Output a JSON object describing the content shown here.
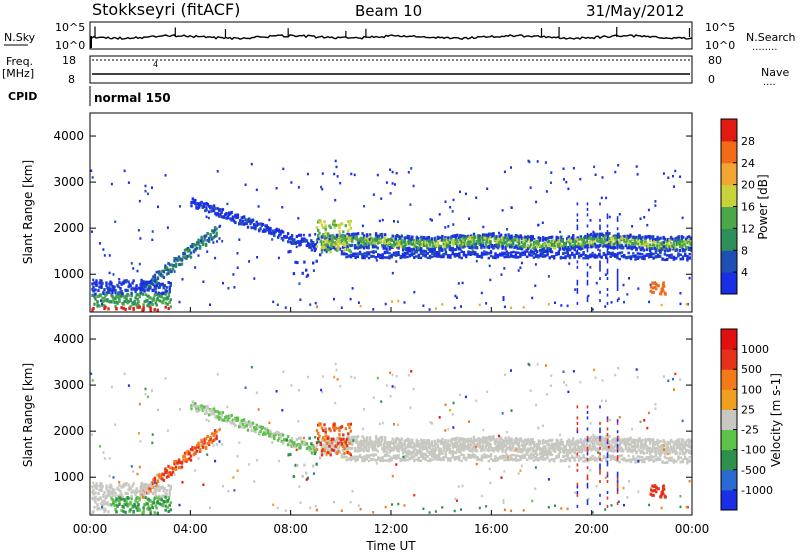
{
  "header": {
    "station": "Stokkseyri (fitACF)",
    "beam": "Beam 10",
    "date": "31/May/2012"
  },
  "nsky_panel": {
    "label": "N.Sky",
    "left_ticks": [
      "10^5",
      "10^0"
    ],
    "right_ticks": [
      "10^5",
      "10^0"
    ],
    "right_label": "N.Search",
    "right_label_line": "........"
  },
  "freq_panel": {
    "label_lines": [
      "Freq.",
      "[MHz]"
    ],
    "left_ticks": [
      "18",
      "8"
    ],
    "right_ticks": [
      "80",
      "0"
    ],
    "right_label": "Nave",
    "right_label_line": "....",
    "marker": "4"
  },
  "cpid": {
    "label": "CPID",
    "text": "normal 150"
  },
  "colors": {
    "power_scale": [
      "#1a2ee6",
      "#1f4fb5",
      "#2e8f5a",
      "#4aa84a",
      "#c8d23a",
      "#f2a531",
      "#f26b18",
      "#e21a12"
    ],
    "velocity_scale": [
      "#1a2ee6",
      "#2a6ad1",
      "#2f8f4c",
      "#5cc24a",
      "#c8c8c2",
      "#f0a020",
      "#f27a18",
      "#e5311a",
      "#e31010"
    ]
  },
  "chart_data": [
    {
      "type": "heatmap",
      "name": "power",
      "ylabel": "Slant Range [km]",
      "yticks": [
        "1000",
        "2000",
        "3000",
        "4000"
      ],
      "ylim": [
        180,
        4500
      ],
      "xlim": [
        "00:00",
        "24:00"
      ],
      "colorbar_label": "Power [dB]",
      "colorbar_ticks": [
        "4",
        "8",
        "12",
        "16",
        "20",
        "24",
        "28"
      ],
      "colorbar_range": [
        0,
        32
      ]
    },
    {
      "type": "heatmap",
      "name": "velocity",
      "ylabel": "Slant Range [km]",
      "yticks": [
        "1000",
        "2000",
        "3000",
        "4000"
      ],
      "ylim": [
        180,
        4500
      ],
      "xlim": [
        "00:00",
        "24:00"
      ],
      "colorbar_label": "Velocity [m s-1]",
      "colorbar_ticks": [
        "1000",
        "500",
        "100",
        "25",
        "-25",
        "-100",
        "-500",
        "-1000"
      ]
    }
  ],
  "xaxis": {
    "ticks": [
      "00:00",
      "04:00",
      "08:00",
      "12:00",
      "16:00",
      "20:00",
      "00:00"
    ],
    "label": "Time UT"
  }
}
